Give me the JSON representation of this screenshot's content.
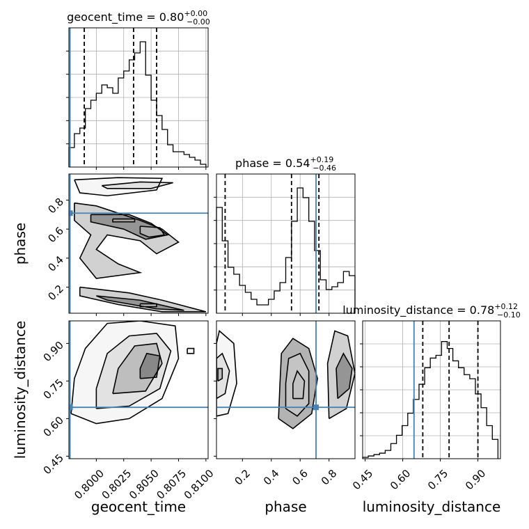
{
  "figure": {
    "truth_color": "#4682b4",
    "params": [
      {
        "name": "geocent_time",
        "xlim": [
          0.7975,
          0.8102
        ],
        "title_value": "0.80",
        "title_plus": "+0.00",
        "title_minus": "−0.00",
        "quantiles": [
          0.7989,
          0.8034,
          0.8055
        ],
        "truth": 0.7976,
        "ticks": [
          0.8,
          0.8025,
          0.805,
          0.8075,
          0.81
        ],
        "tick_labels": [
          "0.8000",
          "0.8025",
          "0.8050",
          "0.8075",
          "0.8100"
        ]
      },
      {
        "name": "phase",
        "xlim": [
          0.02,
          0.98
        ],
        "title_value": "0.54",
        "title_plus": "+0.19",
        "title_minus": "−0.46",
        "quantiles": [
          0.08,
          0.54,
          0.73
        ],
        "truth": 0.71,
        "ticks": [
          0.2,
          0.4,
          0.6,
          0.8
        ],
        "tick_labels": [
          "0.2",
          "0.4",
          "0.6",
          "0.8"
        ]
      },
      {
        "name": "luminosity_distance",
        "xlim": [
          0.44,
          0.99
        ],
        "title_value": "0.78",
        "title_plus": "+0.12",
        "title_minus": "−0.10",
        "quantiles": [
          0.68,
          0.785,
          0.9
        ],
        "truth": 0.645,
        "ticks": [
          0.45,
          0.6,
          0.75,
          0.9
        ],
        "tick_labels": [
          "0.45",
          "0.60",
          "0.75",
          "0.90"
        ]
      }
    ]
  },
  "chart_data": {
    "type": "corner",
    "histograms": [
      {
        "param": "geocent_time",
        "bins_x": [
          0.7975,
          0.798,
          0.7985,
          0.799,
          0.7995,
          0.8,
          0.8005,
          0.801,
          0.8015,
          0.802,
          0.8025,
          0.803,
          0.8035,
          0.804,
          0.8045,
          0.805,
          0.8055,
          0.806,
          0.8065,
          0.807,
          0.8075,
          0.808,
          0.8085,
          0.809,
          0.8095,
          0.81
        ],
        "counts": [
          0.14,
          0.24,
          0.28,
          0.42,
          0.48,
          0.53,
          0.59,
          0.57,
          0.53,
          0.64,
          0.69,
          0.77,
          0.82,
          0.9,
          0.66,
          0.48,
          0.37,
          0.27,
          0.16,
          0.11,
          0.11,
          0.09,
          0.07,
          0.05,
          0.02
        ],
        "ymax": 1.0
      },
      {
        "param": "phase",
        "bins_x": [
          0.02,
          0.06,
          0.1,
          0.14,
          0.18,
          0.22,
          0.26,
          0.3,
          0.34,
          0.38,
          0.42,
          0.46,
          0.5,
          0.54,
          0.58,
          0.62,
          0.66,
          0.7,
          0.74,
          0.78,
          0.82,
          0.86,
          0.9,
          0.94,
          0.98
        ],
        "counts": [
          0.76,
          0.52,
          0.33,
          0.28,
          0.2,
          0.15,
          0.1,
          0.06,
          0.06,
          0.1,
          0.16,
          0.22,
          0.4,
          0.66,
          0.9,
          0.83,
          0.66,
          0.45,
          0.24,
          0.17,
          0.19,
          0.22,
          0.3,
          0.27
        ],
        "ymax": 1.0
      },
      {
        "param": "luminosity_distance",
        "bins_x": [
          0.44,
          0.4625,
          0.485,
          0.5075,
          0.53,
          0.5525,
          0.575,
          0.5975,
          0.62,
          0.6425,
          0.665,
          0.6875,
          0.71,
          0.7325,
          0.755,
          0.7775,
          0.8,
          0.8225,
          0.845,
          0.8675,
          0.89,
          0.9125,
          0.935,
          0.9575,
          0.98
        ],
        "counts": [
          0.01,
          0.02,
          0.03,
          0.04,
          0.06,
          0.11,
          0.17,
          0.24,
          0.33,
          0.43,
          0.54,
          0.66,
          0.73,
          0.75,
          0.85,
          0.8,
          0.71,
          0.66,
          0.61,
          0.58,
          0.47,
          0.37,
          0.24,
          0.14
        ],
        "ymax": 1.0
      }
    ],
    "contours_2d": [
      {
        "x": "geocent_time",
        "y": "phase",
        "ylim": [
          0.02,
          0.98
        ],
        "yticks": [
          0.2,
          0.4,
          0.6,
          0.8
        ],
        "ytick_labels": [
          "0.2",
          "0.4",
          "0.6",
          "0.8"
        ],
        "levels": [
          [
            [
              0.798,
              0.94
            ],
            [
              0.802,
              0.955
            ],
            [
              0.806,
              0.95
            ],
            [
              0.8055,
              0.87
            ],
            [
              0.801,
              0.83
            ],
            [
              0.7985,
              0.85
            ],
            [
              0.798,
              0.94
            ]
          ],
          [
            [
              0.8005,
              0.9
            ],
            [
              0.804,
              0.925
            ],
            [
              0.807,
              0.92
            ],
            [
              0.805,
              0.88
            ],
            [
              0.801,
              0.88
            ],
            [
              0.8005,
              0.9
            ]
          ],
          [
            [
              0.798,
              0.78
            ],
            [
              0.8,
              0.76
            ],
            [
              0.804,
              0.66
            ],
            [
              0.806,
              0.6
            ],
            [
              0.8075,
              0.51
            ],
            [
              0.8055,
              0.43
            ],
            [
              0.804,
              0.52
            ],
            [
              0.801,
              0.56
            ],
            [
              0.8,
              0.46
            ],
            [
              0.802,
              0.36
            ],
            [
              0.804,
              0.3
            ],
            [
              0.8,
              0.26
            ],
            [
              0.7985,
              0.4
            ],
            [
              0.7995,
              0.56
            ],
            [
              0.798,
              0.66
            ],
            [
              0.798,
              0.78
            ]
          ],
          [
            [
              0.7995,
              0.7
            ],
            [
              0.803,
              0.7
            ],
            [
              0.805,
              0.64
            ],
            [
              0.8065,
              0.56
            ],
            [
              0.8045,
              0.53
            ],
            [
              0.8025,
              0.6
            ],
            [
              0.7995,
              0.65
            ],
            [
              0.7995,
              0.7
            ]
          ],
          [
            [
              0.804,
              0.62
            ],
            [
              0.8058,
              0.61
            ],
            [
              0.8062,
              0.56
            ],
            [
              0.8048,
              0.545
            ],
            [
              0.804,
              0.57
            ],
            [
              0.804,
              0.62
            ]
          ],
          [
            [
              0.8015,
              0.67
            ],
            [
              0.8035,
              0.67
            ],
            [
              0.8035,
              0.65
            ],
            [
              0.8015,
              0.65
            ],
            [
              0.8015,
              0.67
            ]
          ],
          [
            [
              0.7985,
              0.2
            ],
            [
              0.803,
              0.16
            ],
            [
              0.806,
              0.11
            ],
            [
              0.81,
              0.03
            ],
            [
              0.806,
              0.03
            ],
            [
              0.802,
              0.08
            ],
            [
              0.7985,
              0.14
            ],
            [
              0.7985,
              0.2
            ]
          ],
          [
            [
              0.8,
              0.14
            ],
            [
              0.804,
              0.11
            ],
            [
              0.808,
              0.04
            ],
            [
              0.8055,
              0.05
            ],
            [
              0.801,
              0.11
            ],
            [
              0.8,
              0.14
            ]
          ],
          [
            [
              0.804,
              0.085
            ],
            [
              0.8055,
              0.085
            ],
            [
              0.8055,
              0.065
            ],
            [
              0.804,
              0.065
            ],
            [
              0.804,
              0.085
            ]
          ]
        ]
      },
      {
        "x": "geocent_time",
        "y": "luminosity_distance",
        "ylim": [
          0.44,
          0.99
        ],
        "yticks": [
          0.45,
          0.6,
          0.75,
          0.9
        ],
        "ytick_labels": [
          "0.45",
          "0.60",
          "0.75",
          "0.90"
        ],
        "levels": [
          [
            [
              0.7977,
              0.62
            ],
            [
              0.8,
              0.58
            ],
            [
              0.803,
              0.6
            ],
            [
              0.806,
              0.68
            ],
            [
              0.8075,
              0.84
            ],
            [
              0.8072,
              0.97
            ],
            [
              0.804,
              0.99
            ],
            [
              0.801,
              0.98
            ],
            [
              0.799,
              0.88
            ],
            [
              0.798,
              0.76
            ],
            [
              0.7977,
              0.62
            ]
          ],
          [
            [
              0.8,
              0.64
            ],
            [
              0.803,
              0.65
            ],
            [
              0.8058,
              0.72
            ],
            [
              0.8068,
              0.87
            ],
            [
              0.8055,
              0.94
            ],
            [
              0.803,
              0.93
            ],
            [
              0.801,
              0.86
            ],
            [
              0.8,
              0.72
            ],
            [
              0.8,
              0.64
            ]
          ],
          [
            [
              0.8015,
              0.7
            ],
            [
              0.8045,
              0.71
            ],
            [
              0.806,
              0.82
            ],
            [
              0.8055,
              0.9
            ],
            [
              0.8035,
              0.89
            ],
            [
              0.802,
              0.8
            ],
            [
              0.8015,
              0.7
            ]
          ],
          [
            [
              0.804,
              0.76
            ],
            [
              0.8055,
              0.765
            ],
            [
              0.8058,
              0.85
            ],
            [
              0.8046,
              0.86
            ],
            [
              0.804,
              0.8
            ],
            [
              0.804,
              0.76
            ]
          ],
          [
            [
              0.8083,
              0.88
            ],
            [
              0.8089,
              0.88
            ],
            [
              0.8089,
              0.86
            ],
            [
              0.8083,
              0.86
            ],
            [
              0.8083,
              0.88
            ]
          ]
        ]
      },
      {
        "x": "phase",
        "y": "luminosity_distance",
        "ylim": [
          0.44,
          0.99
        ],
        "yticks": [
          0.45,
          0.6,
          0.75,
          0.9
        ],
        "ytick_labels": [
          "0.45",
          "0.60",
          "0.75",
          "0.90"
        ],
        "levels": [
          [
            [
              0.02,
              0.61
            ],
            [
              0.1,
              0.62
            ],
            [
              0.16,
              0.74
            ],
            [
              0.14,
              0.9
            ],
            [
              0.04,
              0.95
            ],
            [
              0.02,
              0.9
            ],
            [
              0.02,
              0.61
            ]
          ],
          [
            [
              0.02,
              0.68
            ],
            [
              0.08,
              0.7
            ],
            [
              0.11,
              0.79
            ],
            [
              0.06,
              0.86
            ],
            [
              0.02,
              0.84
            ],
            [
              0.02,
              0.68
            ]
          ],
          [
            [
              0.03,
              0.75
            ],
            [
              0.06,
              0.76
            ],
            [
              0.06,
              0.8
            ],
            [
              0.03,
              0.8
            ],
            [
              0.03,
              0.75
            ]
          ],
          [
            [
              0.45,
              0.6
            ],
            [
              0.55,
              0.56
            ],
            [
              0.68,
              0.62
            ],
            [
              0.72,
              0.76
            ],
            [
              0.66,
              0.88
            ],
            [
              0.55,
              0.92
            ],
            [
              0.47,
              0.86
            ],
            [
              0.46,
              0.74
            ],
            [
              0.45,
              0.6
            ]
          ],
          [
            [
              0.5,
              0.64
            ],
            [
              0.58,
              0.61
            ],
            [
              0.66,
              0.66
            ],
            [
              0.66,
              0.79
            ],
            [
              0.6,
              0.86
            ],
            [
              0.52,
              0.84
            ],
            [
              0.5,
              0.74
            ],
            [
              0.5,
              0.64
            ]
          ],
          [
            [
              0.55,
              0.68
            ],
            [
              0.62,
              0.68
            ],
            [
              0.63,
              0.75
            ],
            [
              0.58,
              0.79
            ],
            [
              0.55,
              0.74
            ],
            [
              0.55,
              0.68
            ]
          ],
          [
            [
              0.8,
              0.6
            ],
            [
              0.92,
              0.64
            ],
            [
              0.98,
              0.78
            ],
            [
              0.93,
              0.93
            ],
            [
              0.84,
              0.95
            ],
            [
              0.79,
              0.82
            ],
            [
              0.8,
              0.6
            ]
          ],
          [
            [
              0.86,
              0.68
            ],
            [
              0.94,
              0.72
            ],
            [
              0.96,
              0.8
            ],
            [
              0.9,
              0.86
            ],
            [
              0.85,
              0.8
            ],
            [
              0.86,
              0.68
            ]
          ]
        ]
      }
    ]
  }
}
